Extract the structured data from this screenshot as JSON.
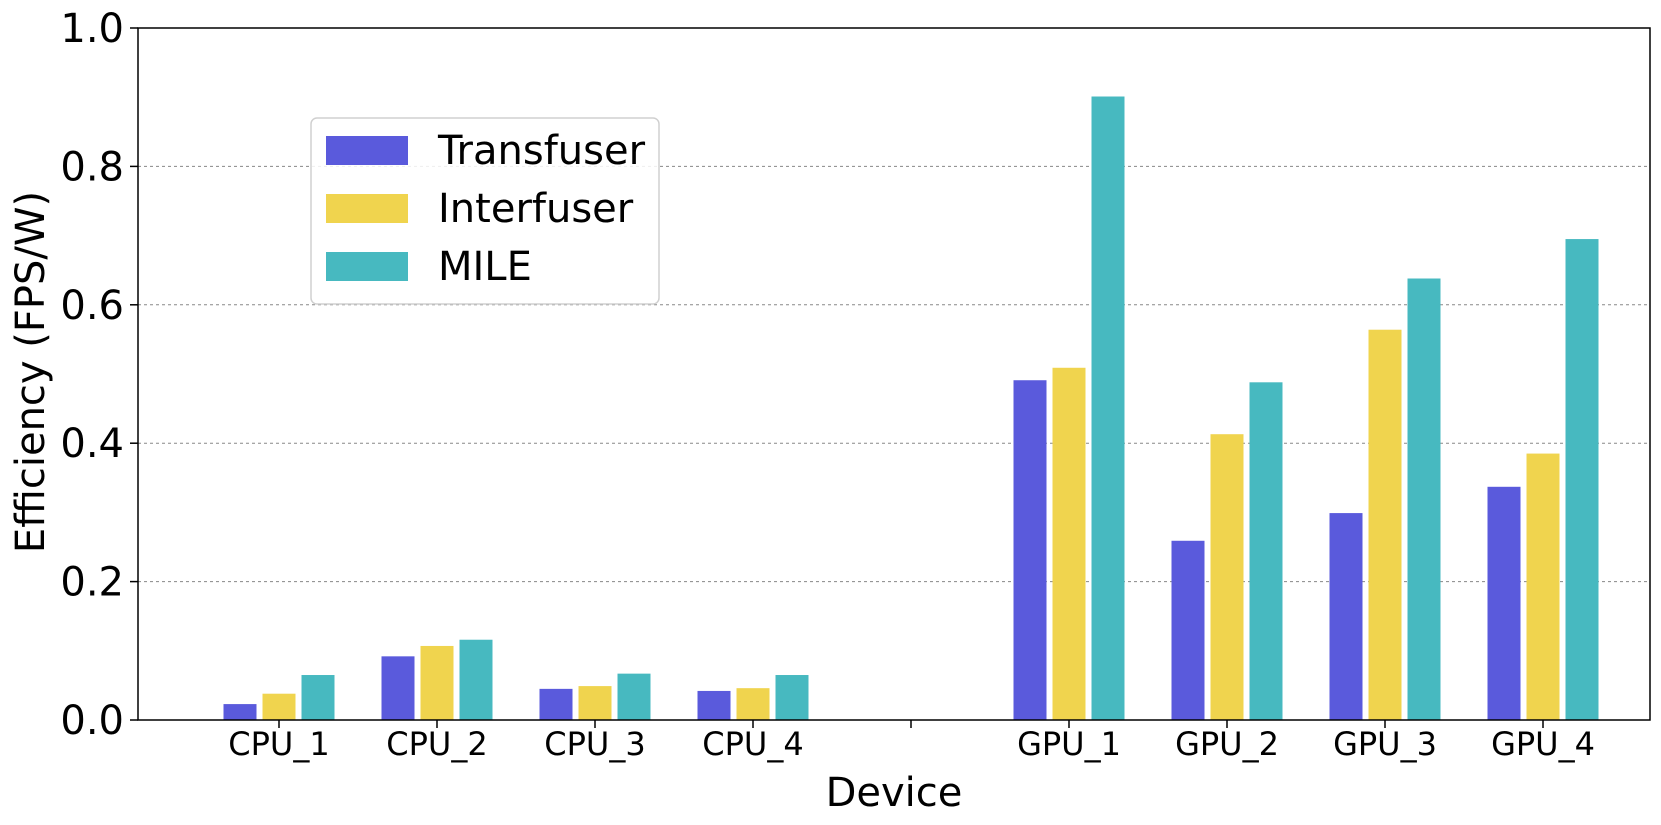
{
  "chart_data": {
    "type": "bar",
    "title": "",
    "xlabel": "Device",
    "ylabel": "Efficiency (FPS/W)",
    "categories": [
      "CPU_1",
      "CPU_2",
      "CPU_3",
      "CPU_4",
      "",
      "GPU_1",
      "GPU_2",
      "GPU_3",
      "GPU_4"
    ],
    "series": [
      {
        "name": "Transfuser",
        "color": "#5a5adc",
        "values": [
          0.023,
          0.092,
          0.045,
          0.042,
          0.0,
          0.491,
          0.259,
          0.299,
          0.337
        ]
      },
      {
        "name": "Interfuser",
        "color": "#f0d44e",
        "values": [
          0.038,
          0.107,
          0.049,
          0.046,
          0.0,
          0.509,
          0.413,
          0.564,
          0.385
        ]
      },
      {
        "name": "MILE",
        "color": "#47b9c0",
        "values": [
          0.065,
          0.116,
          0.067,
          0.065,
          0.0,
          0.901,
          0.488,
          0.638,
          0.695
        ]
      }
    ],
    "ylim": [
      0,
      1.0
    ],
    "yticks": [
      "0.0",
      "0.2",
      "0.4",
      "0.6",
      "0.8",
      "1.0"
    ],
    "grid": "y-dashed",
    "legend": "upper-left"
  }
}
